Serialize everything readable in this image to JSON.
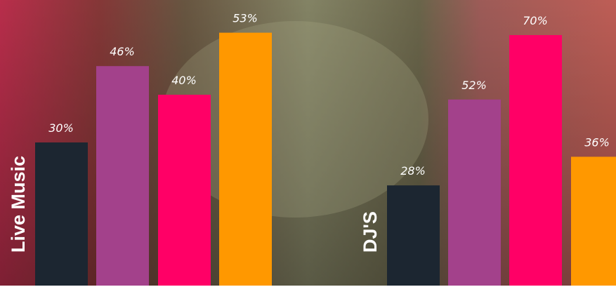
{
  "chart_data": [
    {
      "type": "bar",
      "title": "Live Music",
      "values": [
        30,
        46,
        40,
        53
      ],
      "value_labels": [
        "30%",
        "46%",
        "40%",
        "53%"
      ],
      "colors": [
        "#1c2631",
        "#a3418b",
        "#ff0066",
        "#ff9800"
      ],
      "ylim": [
        0,
        60
      ]
    },
    {
      "type": "bar",
      "title": "DJ'S",
      "values": [
        28,
        52,
        70,
        36
      ],
      "value_labels": [
        "28%",
        "52%",
        "70%",
        "36%"
      ],
      "colors": [
        "#1c2631",
        "#a3418b",
        "#ff0066",
        "#ff9800"
      ],
      "ylim": [
        0,
        80
      ]
    }
  ]
}
